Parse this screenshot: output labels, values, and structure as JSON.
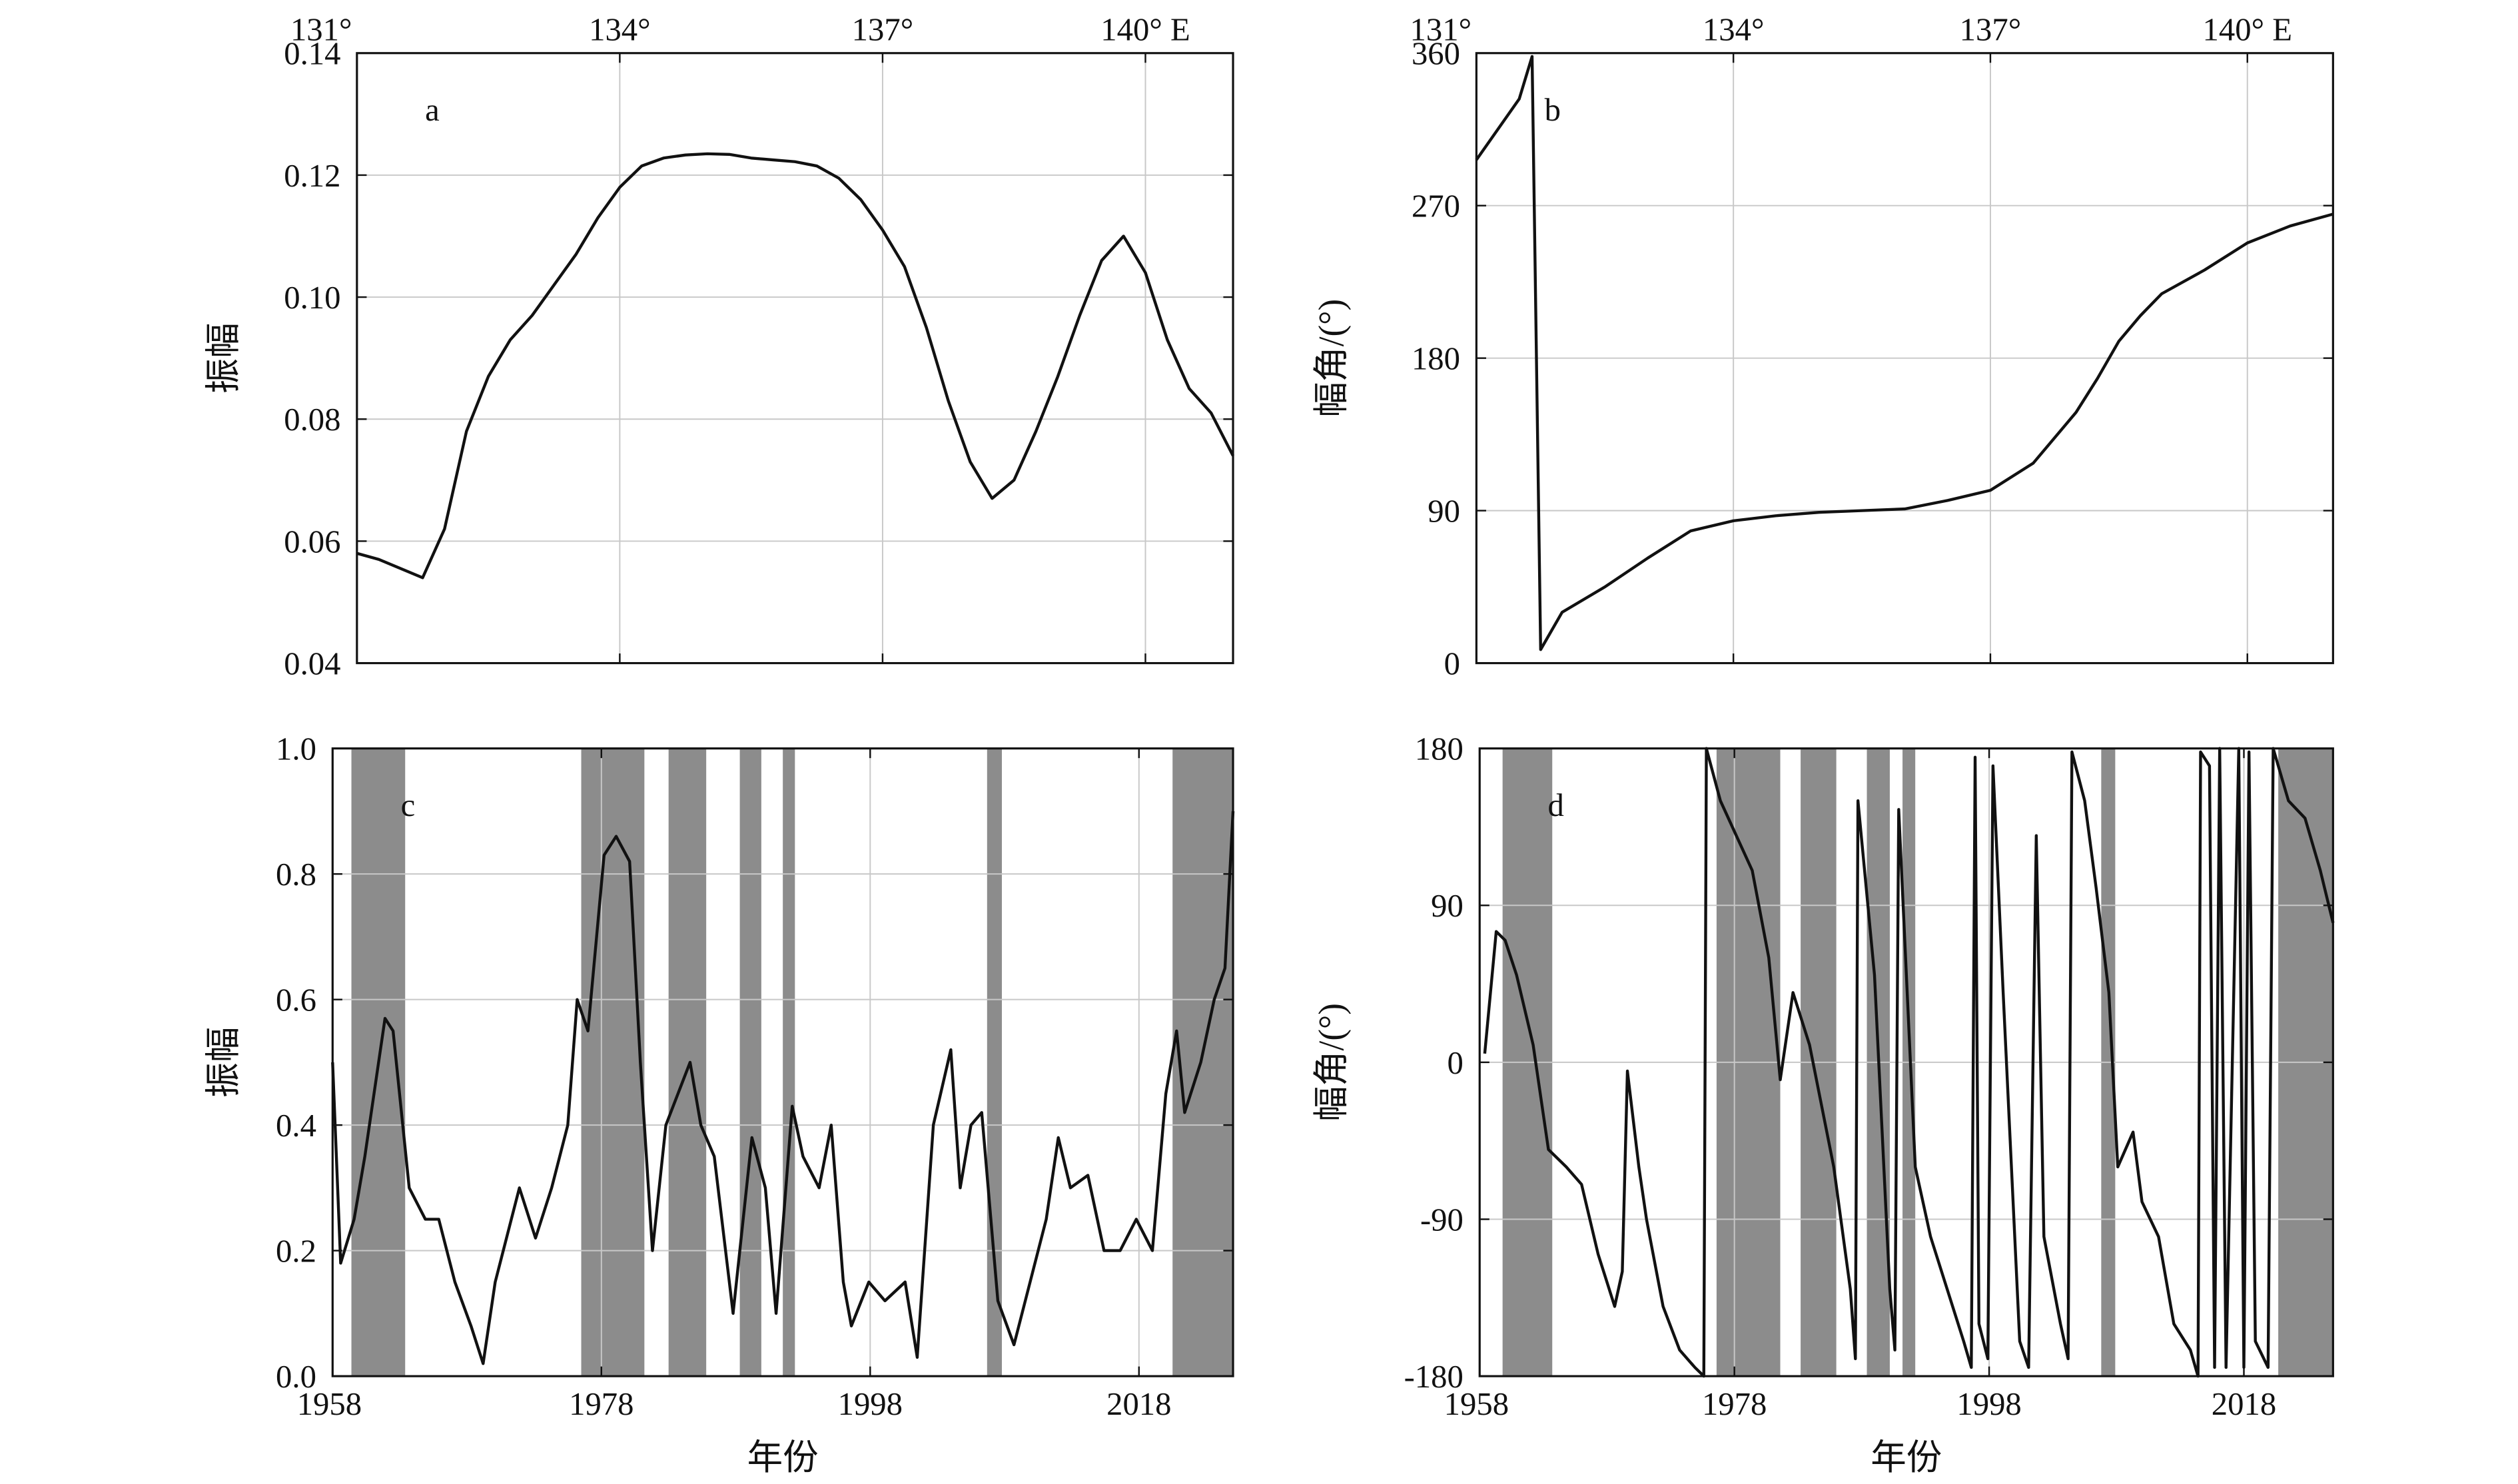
{
  "chart_data": [
    {
      "type": "line",
      "label": "a",
      "ylabel": "振幅",
      "xaxis": "top",
      "grid": true,
      "color": "#111111",
      "xlim": [
        131,
        141
      ],
      "ylim": [
        0.04,
        0.14
      ],
      "xticks": [
        {
          "value": 131,
          "label": "131°"
        },
        {
          "value": 134,
          "label": "134°"
        },
        {
          "value": 137,
          "label": "137°"
        },
        {
          "value": 140,
          "label": "140° E"
        }
      ],
      "yticks": [
        0.04,
        0.06,
        0.08,
        {
          "value": 0.1,
          "label": "0.10"
        },
        0.12,
        0.14
      ],
      "x": [
        131,
        131.25,
        131.5,
        131.75,
        132,
        132.25,
        132.5,
        132.75,
        133,
        133.25,
        133.5,
        133.75,
        134,
        134.25,
        134.5,
        134.75,
        135,
        135.25,
        135.5,
        135.75,
        136,
        136.25,
        136.5,
        136.75,
        137,
        137.25,
        137.5,
        137.75,
        138,
        138.25,
        138.5,
        138.75,
        139,
        139.25,
        139.5,
        139.75,
        140,
        140.25,
        140.5,
        140.75,
        141
      ],
      "values": [
        0.058,
        0.057,
        0.0555,
        0.054,
        0.062,
        0.078,
        0.087,
        0.093,
        0.097,
        0.102,
        0.107,
        0.113,
        0.118,
        0.1215,
        0.1228,
        0.1233,
        0.1235,
        0.1234,
        0.1228,
        0.1225,
        0.1222,
        0.1215,
        0.1195,
        0.116,
        0.111,
        0.105,
        0.095,
        0.083,
        0.073,
        0.067,
        0.07,
        0.078,
        0.087,
        0.097,
        0.106,
        0.11,
        0.104,
        0.093,
        0.085,
        0.081,
        0.074
      ]
    },
    {
      "type": "line",
      "label": "b",
      "ylabel": "幅角/(°)",
      "xaxis": "top",
      "grid": true,
      "color": "#111111",
      "xlim": [
        131,
        141
      ],
      "ylim": [
        0,
        360
      ],
      "xticks": [
        {
          "value": 131,
          "label": "131°"
        },
        {
          "value": 134,
          "label": "134°"
        },
        {
          "value": 137,
          "label": "137°"
        },
        {
          "value": 140,
          "label": "140° E"
        }
      ],
      "yticks": [
        0,
        90,
        180,
        270,
        360
      ],
      "x": [
        131,
        131.25,
        131.5,
        131.65,
        131.75,
        132,
        132.5,
        133,
        133.5,
        134,
        134.5,
        135,
        135.5,
        136,
        136.5,
        137,
        137.5,
        138,
        138.25,
        138.5,
        138.75,
        139,
        139.5,
        140,
        140.5,
        141
      ],
      "values": [
        297,
        315,
        333,
        358,
        8,
        30,
        45,
        62,
        78,
        84,
        87,
        89,
        90,
        91,
        96,
        102,
        118,
        148,
        168,
        190,
        205,
        218,
        232,
        248,
        258,
        265
      ]
    },
    {
      "type": "line",
      "label": "c",
      "ylabel": "振幅",
      "xlabel": "年份",
      "xaxis": "bottom",
      "grid": true,
      "color": "#111111",
      "shade_color": "#8c8c8c",
      "xlim": [
        1958,
        2025
      ],
      "ylim": [
        0,
        1
      ],
      "xticks": [
        1958,
        1978,
        1998,
        2018
      ],
      "yticks": [
        {
          "value": 0,
          "label": "0.0"
        },
        0.2,
        0.4,
        0.6,
        0.8,
        {
          "value": 1,
          "label": "1.0"
        }
      ],
      "shaded": [
        [
          1959.4,
          1963.4
        ],
        [
          1976.5,
          1981.2
        ],
        [
          1983,
          1985.8
        ],
        [
          1988.3,
          1989.9
        ],
        [
          1991.5,
          1992.4
        ],
        [
          2006.7,
          2007.8
        ],
        [
          2020.5,
          2025
        ]
      ],
      "x": [
        1958,
        1958.6,
        1959.6,
        1960.4,
        1961.9,
        1962.5,
        1963.7,
        1964.9,
        1965.9,
        1967.1,
        1968.3,
        1969.2,
        1970.1,
        1971.9,
        1973.1,
        1974.3,
        1975.5,
        1976.2,
        1977,
        1978.2,
        1979.1,
        1980.1,
        1980.9,
        1981.8,
        1982.8,
        1984.6,
        1985.4,
        1986.4,
        1987.8,
        1989.2,
        1990.2,
        1991,
        1992.2,
        1993,
        1994.2,
        1995.1,
        1996,
        1996.6,
        1997.9,
        1999.1,
        2000.6,
        2001.5,
        2002.7,
        2004,
        2004.7,
        2005.5,
        2006.3,
        2007.5,
        2008.7,
        2009.9,
        2011.1,
        2012,
        2012.9,
        2014.2,
        2015.4,
        2016.6,
        2017.8,
        2019,
        2020,
        2020.8,
        2021.4,
        2022.6,
        2023.6,
        2024.4,
        2025
      ],
      "values": [
        0.5,
        0.18,
        0.25,
        0.35,
        0.57,
        0.55,
        0.3,
        0.25,
        0.25,
        0.15,
        0.08,
        0.02,
        0.15,
        0.3,
        0.22,
        0.3,
        0.4,
        0.6,
        0.55,
        0.83,
        0.86,
        0.82,
        0.5,
        0.2,
        0.4,
        0.5,
        0.4,
        0.35,
        0.1,
        0.38,
        0.3,
        0.1,
        0.43,
        0.35,
        0.3,
        0.4,
        0.15,
        0.08,
        0.15,
        0.12,
        0.15,
        0.03,
        0.4,
        0.52,
        0.3,
        0.4,
        0.42,
        0.12,
        0.05,
        0.15,
        0.25,
        0.38,
        0.3,
        0.32,
        0.2,
        0.2,
        0.25,
        0.2,
        0.45,
        0.55,
        0.42,
        0.5,
        0.6,
        0.65,
        0.9
      ]
    },
    {
      "type": "line",
      "label": "d",
      "ylabel": "幅角/(°)",
      "xlabel": "年份",
      "xaxis": "bottom",
      "grid": true,
      "color": "#111111",
      "shade_color": "#8c8c8c",
      "xlim": [
        1958,
        2025
      ],
      "ylim": [
        -180,
        180
      ],
      "xticks": [
        1958,
        1978,
        1998,
        2018
      ],
      "yticks": [
        -180,
        -90,
        0,
        90,
        180
      ],
      "shaded": [
        [
          1959.8,
          1963.7
        ],
        [
          1976.6,
          1981.6
        ],
        [
          1983.2,
          1986
        ],
        [
          1988.4,
          1990.2
        ],
        [
          1991.2,
          1992.2
        ],
        [
          2006.8,
          2007.9
        ],
        [
          2020.7,
          2025
        ]
      ],
      "x": [
        1958.4,
        1959.3,
        1960,
        1960.9,
        1962.2,
        1963.4,
        1964.8,
        1966,
        1967.3,
        1968.6,
        1969.2,
        1969.6,
        1970.5,
        1971.1,
        1972.4,
        1973.7,
        1974.9,
        1975.6,
        1975.8,
        1976.9,
        1979.4,
        1980.7,
        1981.6,
        1982.6,
        1983.9,
        1985.8,
        1987.1,
        1987.5,
        1987.7,
        1989,
        1990.2,
        1990.6,
        1990.9,
        1992.2,
        1993.4,
        1994.7,
        1996,
        1996.6,
        1996.9,
        1997.2,
        1997.9,
        1998.3,
        1999.1,
        2000.4,
        2001.1,
        2001.7,
        2002.3,
        2003.6,
        2004.2,
        2004.5,
        2005.5,
        2006.4,
        2007.4,
        2008.1,
        2009.3,
        2010,
        2011.3,
        2012.5,
        2013.8,
        2014.4,
        2014.6,
        2015.3,
        2015.7,
        2016.1,
        2016.6,
        2017.6,
        2018,
        2018.4,
        2018.9,
        2019.9,
        2020.3,
        2021.5,
        2022.8,
        2024,
        2025
      ],
      "values": [
        5,
        75,
        70,
        50,
        10,
        -50,
        -60,
        -70,
        -110,
        -140,
        -120,
        -5,
        -60,
        -90,
        -140,
        -165,
        -175,
        -180,
        180,
        150,
        110,
        60,
        -10,
        40,
        10,
        -60,
        -130,
        -170,
        150,
        50,
        -130,
        -165,
        145,
        -60,
        -100,
        -130,
        -160,
        -175,
        175,
        -150,
        -170,
        170,
        40,
        -160,
        -175,
        130,
        -100,
        -150,
        -170,
        178,
        150,
        100,
        40,
        -60,
        -40,
        -80,
        -100,
        -150,
        -165,
        -180,
        178,
        170,
        -175,
        180,
        -175,
        180,
        -175,
        178,
        -160,
        -175,
        180,
        150,
        140,
        110,
        80
      ]
    }
  ]
}
